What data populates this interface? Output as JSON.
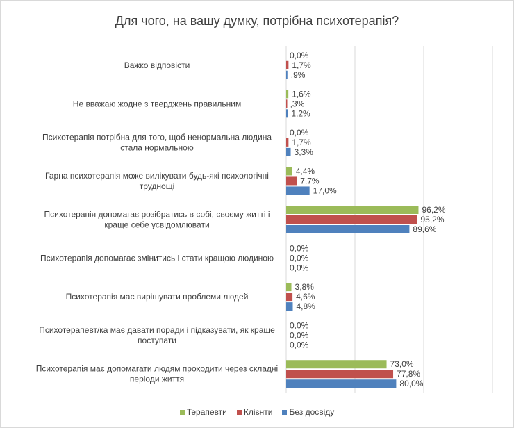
{
  "chart_data": {
    "type": "bar",
    "orientation": "horizontal",
    "title": "Для чого, на вашу думку, потрібна психотерапія?",
    "categories": [
      [
        "Важко відповісти"
      ],
      [
        "Не вважаю жодне з тверджень правильним"
      ],
      [
        "Психотерапія потрібна для того, щоб ненормальна людина",
        "стала нормальною"
      ],
      [
        "Гарна психотерапія може вилікувати будь-які психологічні",
        "труднощі"
      ],
      [
        "Психотерапія допомагає розібратись в собі, своєму житті і",
        "краще себе усвідомлювати"
      ],
      [
        "Психотерапія допомагає змінитись і стати кращою людиною"
      ],
      [
        "Психотерапія має вирішувати проблеми людей"
      ],
      [
        "Психотерапевт/ка має давати поради і підказувати, як краще",
        "поступати"
      ],
      [
        "Психотерапія має допомагати людям проходити через складні",
        "періоди життя"
      ]
    ],
    "series": [
      {
        "name": "Терапевти",
        "color": "#9bbb59",
        "values": [
          0.0,
          1.6,
          0.0,
          4.4,
          96.2,
          0.0,
          3.8,
          0.0,
          73.0
        ],
        "labels": [
          "0,0%",
          "1,6%",
          "0,0%",
          "4,4%",
          "96,2%",
          "0,0%",
          "3,8%",
          "0,0%",
          "73,0%"
        ]
      },
      {
        "name": "Клієнти",
        "color": "#c0504d",
        "values": [
          1.7,
          0.3,
          1.7,
          7.7,
          95.2,
          0.0,
          4.6,
          0.0,
          77.8
        ],
        "labels": [
          "1,7%",
          ",3%",
          "1,7%",
          "7,7%",
          "95,2%",
          "0,0%",
          "4,6%",
          "0,0%",
          "77,8%"
        ]
      },
      {
        "name": "Без досвіду",
        "color": "#4f81bd",
        "values": [
          0.9,
          1.2,
          3.3,
          17.0,
          89.6,
          0.0,
          4.8,
          0.0,
          80.0
        ],
        "labels": [
          ",9%",
          "1,2%",
          "3,3%",
          "17,0%",
          "89,6%",
          "0,0%",
          "4,8%",
          "0,0%",
          "80,0%"
        ]
      }
    ],
    "xlim": [
      0,
      150
    ],
    "grid": true,
    "legend": "bottom"
  }
}
